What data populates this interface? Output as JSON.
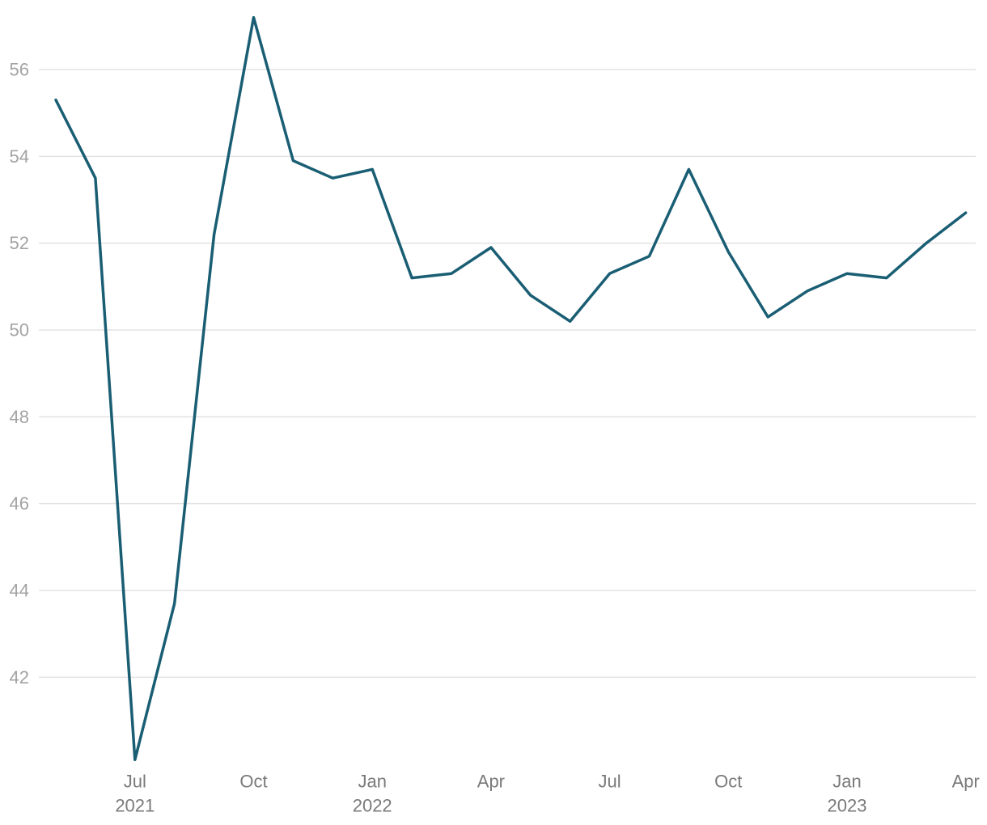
{
  "chart_data": {
    "type": "line",
    "x": [
      "2021-05",
      "2021-06",
      "2021-07",
      "2021-08",
      "2021-09",
      "2021-10",
      "2021-11",
      "2021-12",
      "2022-01",
      "2022-02",
      "2022-03",
      "2022-04",
      "2022-05",
      "2022-06",
      "2022-07",
      "2022-08",
      "2022-09",
      "2022-10",
      "2022-11",
      "2022-12",
      "2023-01",
      "2023-02",
      "2023-03",
      "2023-04"
    ],
    "series": [
      {
        "values": [
          55.3,
          53.5,
          40.1,
          43.7,
          52.2,
          57.2,
          53.9,
          53.5,
          53.7,
          51.2,
          51.3,
          51.9,
          50.8,
          50.2,
          51.3,
          51.7,
          53.7,
          51.8,
          50.3,
          50.9,
          51.3,
          51.2,
          52.0,
          52.7
        ],
        "color": "#1a5e74"
      }
    ],
    "ylim": [
      40,
      57.2
    ],
    "yticks": [
      "42",
      "44",
      "46",
      "48",
      "50",
      "52",
      "54",
      "56"
    ],
    "xticks": [
      {
        "x": "2021-07",
        "month": "Jul",
        "year": "2021"
      },
      {
        "x": "2021-10",
        "month": "Oct",
        "year": ""
      },
      {
        "x": "2022-01",
        "month": "Jan",
        "year": "2022"
      },
      {
        "x": "2022-04",
        "month": "Apr",
        "year": ""
      },
      {
        "x": "2022-07",
        "month": "Jul",
        "year": ""
      },
      {
        "x": "2022-10",
        "month": "Oct",
        "year": ""
      },
      {
        "x": "2023-01",
        "month": "Jan",
        "year": "2023"
      },
      {
        "x": "2023-04",
        "month": "Apr",
        "year": ""
      }
    ],
    "title": "",
    "xlabel": "",
    "ylabel": "",
    "grid": "horizontal",
    "legend": "none"
  }
}
